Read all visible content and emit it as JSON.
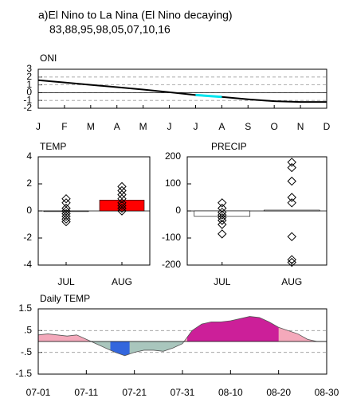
{
  "title": "a)El Nino to La Nina (El Nino decaying)",
  "subtitle": "83,88,95,98,05,07,10,16",
  "chart_data": [
    {
      "type": "line",
      "title": "ONI",
      "categories": [
        "J",
        "F",
        "M",
        "A",
        "M",
        "J",
        "J",
        "A",
        "S",
        "O",
        "N",
        "D"
      ],
      "series": [
        {
          "color": "#000000",
          "values": [
            1.6,
            1.3,
            1.0,
            0.7,
            0.4,
            0.05,
            -0.3,
            -0.55,
            -0.85,
            -1.1,
            -1.2,
            -1.2
          ]
        },
        {
          "color": "#00e5ee",
          "values": [
            null,
            null,
            null,
            null,
            null,
            null,
            -0.3,
            -0.55,
            null,
            null,
            null,
            null
          ]
        }
      ],
      "ylim": [
        -2,
        3
      ],
      "yticks": [
        -2,
        -1,
        0,
        1,
        2,
        3
      ],
      "grid": true,
      "zero_line": true
    },
    {
      "type": "bar",
      "title": "TEMP",
      "categories": [
        "JUL",
        "AUG"
      ],
      "values": [
        -0.05,
        0.8
      ],
      "colors": [
        "#ffffff",
        "#ff0000"
      ],
      "points": [
        [
          0.9,
          0.6,
          0.2,
          0.0,
          -0.2,
          -0.4,
          -0.6,
          -0.8
        ],
        [
          1.8,
          1.5,
          1.2,
          0.9,
          0.6,
          0.4,
          0.2,
          0.0
        ]
      ],
      "ylim": [
        -4,
        4
      ],
      "yticks": [
        -4,
        -2,
        0,
        2,
        4
      ],
      "grid": false,
      "zero_line": true
    },
    {
      "type": "bar",
      "title": "PRECIP",
      "categories": [
        "JUL",
        "AUG"
      ],
      "values": [
        -20,
        3
      ],
      "colors": [
        "#ffffff",
        "#ffffff"
      ],
      "points": [
        [
          30,
          10,
          -5,
          -15,
          -25,
          -35,
          -50,
          -85
        ],
        [
          180,
          160,
          110,
          50,
          30,
          -95,
          -180,
          -190
        ]
      ],
      "ylim": [
        -200,
        200
      ],
      "yticks": [
        -200,
        -100,
        0,
        100,
        200
      ],
      "grid": false,
      "zero_line": true
    },
    {
      "type": "area",
      "title": "Daily TEMP",
      "x": [
        0,
        2,
        4,
        6,
        8,
        10,
        12,
        14,
        16,
        18,
        20,
        22,
        24,
        26,
        28,
        30,
        32,
        34,
        36,
        38,
        40,
        42,
        44,
        46,
        48,
        50,
        52,
        54,
        56,
        58,
        60
      ],
      "values": [
        0.3,
        0.35,
        0.3,
        0.25,
        0.3,
        0.1,
        -0.1,
        -0.3,
        -0.5,
        -0.65,
        -0.5,
        -0.4,
        -0.4,
        -0.45,
        -0.3,
        -0.1,
        0.5,
        0.8,
        0.9,
        0.9,
        0.95,
        1.05,
        1.15,
        1.1,
        0.9,
        0.65,
        0.5,
        0.35,
        0.1,
        0.0,
        0.0
      ],
      "positive_color": "#f4a9bb",
      "negative_color": "#a9c6bd",
      "highlights": [
        {
          "range": [
            15,
            19
          ],
          "color": "#3366dd"
        },
        {
          "range": [
            31,
            50
          ],
          "color": "#cc1f99"
        }
      ],
      "xlim": [
        0,
        60
      ],
      "xticks": [
        {
          "value": 0,
          "label": "07-01"
        },
        {
          "value": 10,
          "label": "07-11"
        },
        {
          "value": 20,
          "label": "07-21"
        },
        {
          "value": 30,
          "label": "07-31"
        },
        {
          "value": 40,
          "label": "08-10"
        },
        {
          "value": 50,
          "label": "08-20"
        },
        {
          "value": 60,
          "label": "08-30"
        }
      ],
      "ylim": [
        -1.5,
        1.5
      ],
      "yticks": [
        {
          "value": -1.5,
          "label": "-1.5"
        },
        {
          "value": -0.5,
          "label": "-.5"
        },
        {
          "value": 0.5,
          "label": ".5"
        },
        {
          "value": 1.5,
          "label": "1.5"
        }
      ],
      "grid": true,
      "zero_line": true
    }
  ]
}
